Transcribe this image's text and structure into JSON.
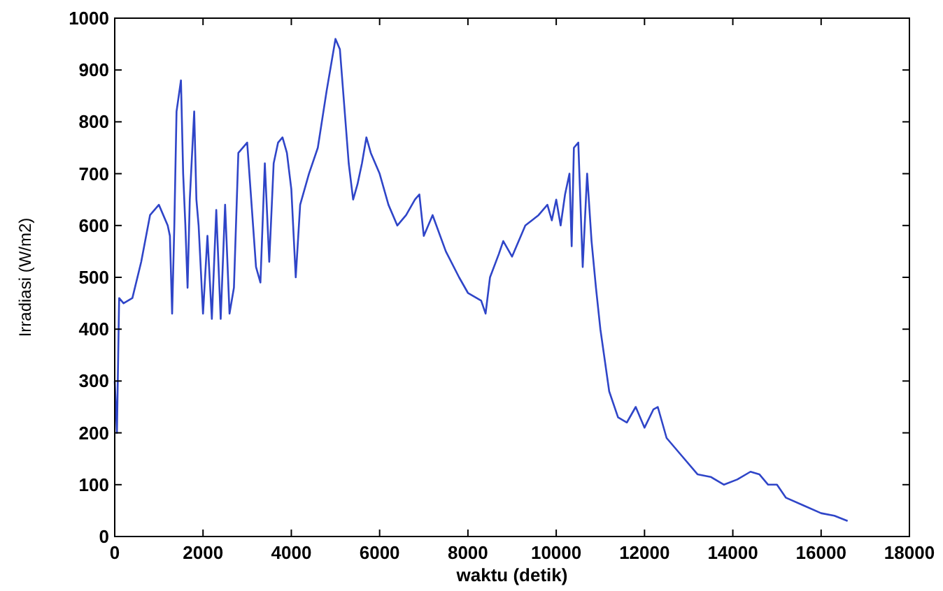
{
  "chart_data": {
    "type": "line",
    "xlabel": "waktu (detik)",
    "ylabel": "Irradiasi (W/m2)",
    "xlim": [
      0,
      18000
    ],
    "ylim": [
      0,
      1000
    ],
    "xticks": [
      0,
      2000,
      4000,
      6000,
      8000,
      10000,
      12000,
      14000,
      16000,
      18000
    ],
    "yticks": [
      0,
      100,
      200,
      300,
      400,
      500,
      600,
      700,
      800,
      900,
      1000
    ],
    "grid": false,
    "series": [
      {
        "color": "#2f45c8",
        "x": [
          0,
          50,
          100,
          200,
          400,
          600,
          800,
          1000,
          1200,
          1250,
          1300,
          1350,
          1400,
          1500,
          1550,
          1600,
          1650,
          1700,
          1800,
          1850,
          1900,
          2000,
          2100,
          2200,
          2300,
          2400,
          2500,
          2600,
          2700,
          2800,
          3000,
          3100,
          3200,
          3300,
          3400,
          3500,
          3600,
          3700,
          3800,
          3900,
          4000,
          4100,
          4200,
          4400,
          4600,
          4800,
          5000,
          5100,
          5300,
          5400,
          5500,
          5600,
          5700,
          5800,
          6000,
          6200,
          6400,
          6600,
          6800,
          6900,
          7000,
          7200,
          7500,
          7800,
          8000,
          8300,
          8400,
          8500,
          8700,
          8800,
          9000,
          9300,
          9600,
          9800,
          9900,
          10000,
          10100,
          10200,
          10300,
          10350,
          10400,
          10500,
          10600,
          10700,
          10800,
          10900,
          11000,
          11200,
          11400,
          11600,
          11800,
          12000,
          12200,
          12300,
          12500,
          12800,
          13200,
          13500,
          13800,
          14100,
          14400,
          14600,
          14800,
          15000,
          15200,
          15600,
          16000,
          16300,
          16600
        ],
        "values": [
          300,
          200,
          460,
          450,
          460,
          530,
          620,
          640,
          600,
          580,
          430,
          600,
          820,
          880,
          700,
          600,
          480,
          650,
          820,
          650,
          600,
          430,
          580,
          420,
          630,
          420,
          640,
          430,
          480,
          740,
          760,
          640,
          520,
          490,
          720,
          530,
          720,
          760,
          770,
          740,
          670,
          500,
          640,
          700,
          750,
          860,
          960,
          940,
          720,
          650,
          680,
          720,
          770,
          740,
          700,
          640,
          600,
          620,
          650,
          660,
          580,
          620,
          550,
          500,
          470,
          455,
          430,
          500,
          545,
          570,
          540,
          600,
          620,
          640,
          610,
          650,
          600,
          660,
          700,
          560,
          750,
          760,
          520,
          700,
          570,
          480,
          400,
          280,
          230,
          220,
          250,
          210,
          245,
          250,
          190,
          160,
          120,
          115,
          100,
          110,
          125,
          120,
          100,
          100,
          75,
          60,
          45,
          40,
          30
        ]
      }
    ]
  }
}
